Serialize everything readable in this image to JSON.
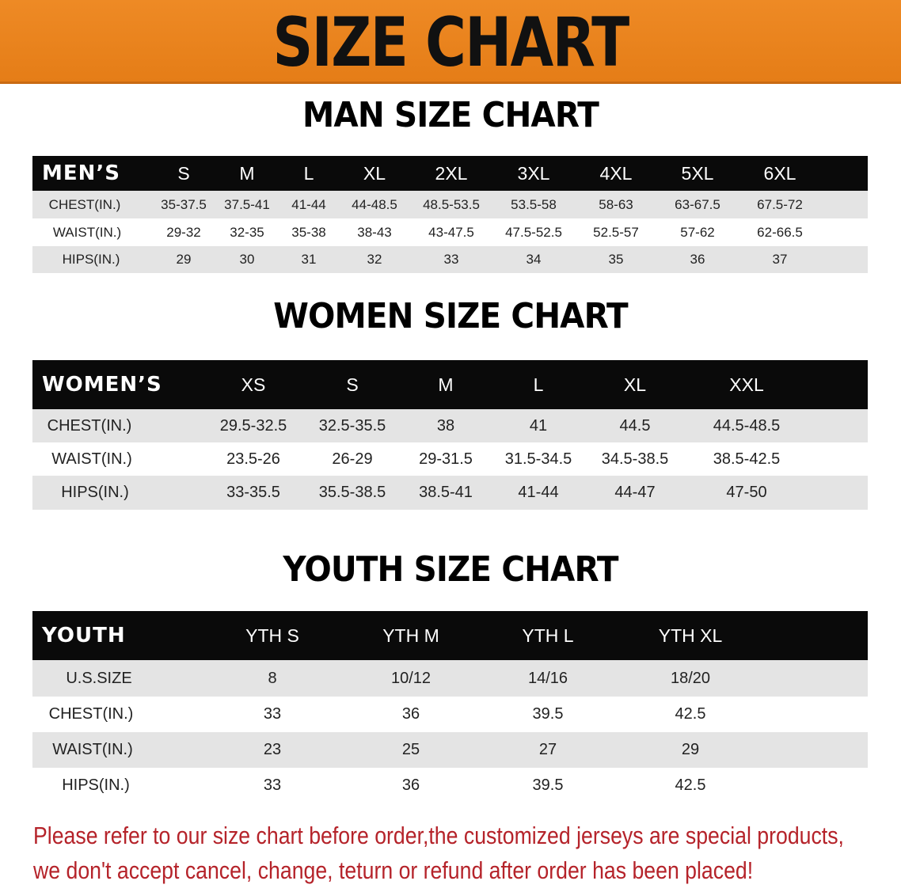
{
  "banner": {
    "title": "SIZE CHART",
    "color": "#e8811f"
  },
  "men": {
    "title": "MAN SIZE CHART",
    "header": [
      "MEN’S",
      "S",
      "M",
      "L",
      "XL",
      "2XL",
      "3XL",
      "4XL",
      "5XL",
      "6XL"
    ],
    "rows": [
      [
        "CHEST(IN.)",
        "35-37.5",
        "37.5-41",
        "41-44",
        "44-48.5",
        "48.5-53.5",
        "53.5-58",
        "58-63",
        "63-67.5",
        "67.5-72"
      ],
      [
        "WAIST(IN.)",
        "29-32",
        "32-35",
        "35-38",
        "38-43",
        "43-47.5",
        "47.5-52.5",
        "52.5-57",
        "57-62",
        "62-66.5"
      ],
      [
        "HIPS(IN.)",
        "29",
        "30",
        "31",
        "32",
        "33",
        "34",
        "35",
        "36",
        "37"
      ]
    ]
  },
  "women": {
    "title": "WOMEN SIZE CHART",
    "header": [
      "WOMEN’S",
      "XS",
      "S",
      "M",
      "L",
      "XL",
      "XXL"
    ],
    "rows": [
      [
        "CHEST(IN.)",
        "29.5-32.5",
        "32.5-35.5",
        "38",
        "41",
        "44.5",
        "44.5-48.5"
      ],
      [
        "WAIST(IN.)",
        "23.5-26",
        "26-29",
        "29-31.5",
        "31.5-34.5",
        "34.5-38.5",
        "38.5-42.5"
      ],
      [
        "HIPS(IN.)",
        "33-35.5",
        "35.5-38.5",
        "38.5-41",
        "41-44",
        "44-47",
        "47-50"
      ]
    ]
  },
  "youth": {
    "title": "YOUTH SIZE CHART",
    "header": [
      "YOUTH",
      "YTH S",
      "YTH M",
      "YTH L",
      "YTH XL"
    ],
    "rows": [
      [
        "U.S.SIZE",
        "8",
        "10/12",
        "14/16",
        "18/20"
      ],
      [
        "CHEST(IN.)",
        "33",
        "36",
        "39.5",
        "42.5"
      ],
      [
        "WAIST(IN.)",
        "23",
        "25",
        "27",
        "29"
      ],
      [
        "HIPS(IN.)",
        "33",
        "36",
        "39.5",
        "42.5"
      ]
    ]
  },
  "notice": {
    "line1": "Please refer to our size chart before order,the customized jerseys are special products,",
    "line2": "we don't accept cancel, change, teturn or refund after order has been placed!",
    "color": "#b5232a"
  }
}
